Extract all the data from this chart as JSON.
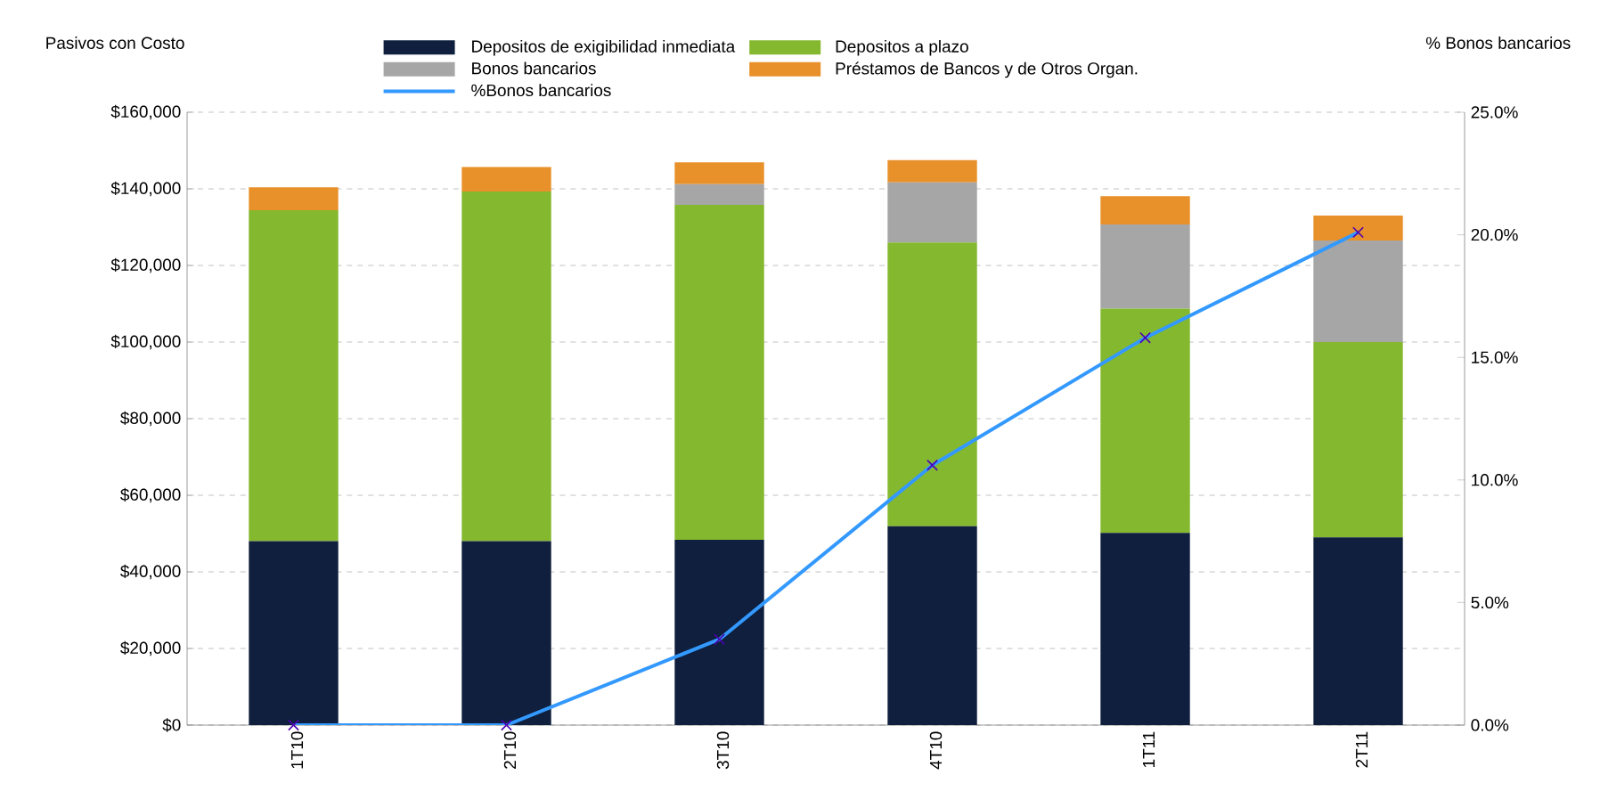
{
  "chart_data": {
    "type": "bar",
    "stacked": true,
    "ylabel": "Pasivos con Costo",
    "y2label": "% Bonos bancarios",
    "categories": [
      "1T10",
      "2T10",
      "3T10",
      "4T10",
      "1T11",
      "2T11"
    ],
    "series": [
      {
        "name": "Depositos de exigibilidad inmediata",
        "color": "#0f1f3d",
        "values": [
          48000,
          48000,
          48400,
          51900,
          50200,
          49000
        ]
      },
      {
        "name": "Depositos a plazo",
        "color": "#84b82e",
        "values": [
          86400,
          91300,
          87400,
          74100,
          58500,
          51000
        ]
      },
      {
        "name": "Bonos bancarios",
        "color": "#a6a6a6",
        "values": [
          0,
          0,
          5400,
          15700,
          22000,
          26500
        ]
      },
      {
        "name": "Préstamos de Bancos y de Otros Organ.",
        "color": "#e8912a",
        "values": [
          6000,
          6400,
          5700,
          5800,
          7400,
          6500
        ]
      },
      {
        "name": "%Bonos bancarios",
        "type": "line",
        "axis": "y2",
        "marker": "cross",
        "color": "#3399ff",
        "values": [
          0,
          0,
          3.5,
          10.6,
          15.8,
          20.1
        ]
      }
    ],
    "ylim": [
      0,
      160000
    ],
    "yticks": [
      {
        "value": 0,
        "label": "$0"
      },
      {
        "value": 20000,
        "label": "$20,000"
      },
      {
        "value": 40000,
        "label": "$40,000"
      },
      {
        "value": 60000,
        "label": "$60,000"
      },
      {
        "value": 80000,
        "label": "$80,000"
      },
      {
        "value": 100000,
        "label": "$100,000"
      },
      {
        "value": 120000,
        "label": "$120,000"
      },
      {
        "value": 140000,
        "label": "$140,000"
      },
      {
        "value": 160000,
        "label": "$160,000"
      }
    ],
    "y2lim": [
      0,
      25
    ],
    "y2ticks": [
      {
        "value": 0,
        "label": "0.0%"
      },
      {
        "value": 5,
        "label": "5.0%"
      },
      {
        "value": 10,
        "label": "10.0%"
      },
      {
        "value": 15,
        "label": "15.0%"
      },
      {
        "value": 20,
        "label": "20.0%"
      },
      {
        "value": 25,
        "label": "25.0%"
      }
    ],
    "grid": "y",
    "legend": "top"
  }
}
